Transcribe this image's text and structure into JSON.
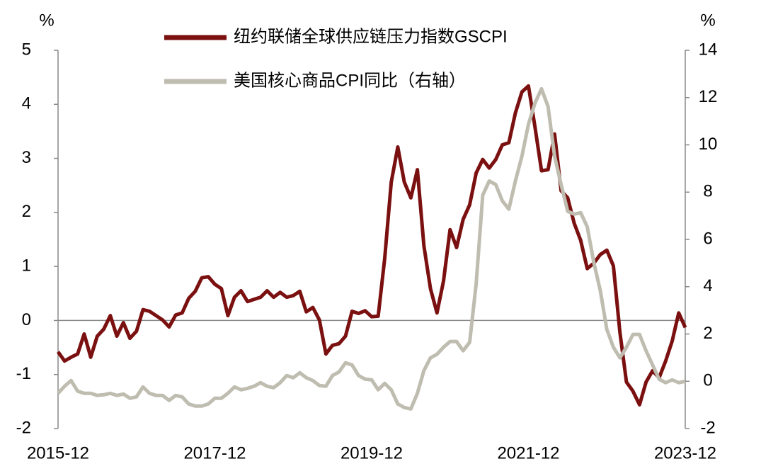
{
  "chart_data": {
    "type": "line",
    "y_label": "%",
    "y2_label": "%",
    "categories": [
      "2015-12",
      null,
      null,
      null,
      null,
      null,
      null,
      null,
      null,
      null,
      null,
      null,
      null,
      null,
      null,
      null,
      null,
      null,
      null,
      null,
      null,
      null,
      null,
      null,
      "2017-12",
      null,
      null,
      null,
      null,
      null,
      null,
      null,
      null,
      null,
      null,
      null,
      null,
      null,
      null,
      null,
      null,
      null,
      null,
      null,
      null,
      null,
      null,
      null,
      "2019-12",
      null,
      null,
      null,
      null,
      null,
      null,
      null,
      null,
      null,
      null,
      null,
      null,
      null,
      null,
      null,
      null,
      null,
      null,
      null,
      null,
      null,
      null,
      null,
      "2021-12",
      null,
      null,
      null,
      null,
      null,
      null,
      null,
      null,
      null,
      null,
      null,
      null,
      null,
      null,
      null,
      null,
      null,
      null,
      null,
      null,
      null,
      null,
      null,
      "2023-12"
    ],
    "series": [
      {
        "name": "纽约联储全球供应链压力指数GSCPI",
        "color": "#7b1010",
        "axis": "y",
        "values": [
          -0.58,
          -0.75,
          -0.68,
          -0.62,
          -0.25,
          -0.68,
          -0.29,
          -0.16,
          0.09,
          -0.29,
          -0.04,
          -0.33,
          -0.2,
          0.2,
          0.17,
          0.09,
          0.01,
          -0.12,
          0.1,
          0.14,
          0.41,
          0.54,
          0.79,
          0.81,
          0.67,
          0.59,
          0.09,
          0.43,
          0.55,
          0.35,
          0.39,
          0.43,
          0.55,
          0.43,
          0.52,
          0.43,
          0.46,
          0.54,
          0.16,
          0.24,
          0.01,
          -0.62,
          -0.46,
          -0.43,
          -0.29,
          0.17,
          0.13,
          0.18,
          0.07,
          0.08,
          1.15,
          2.56,
          3.21,
          2.56,
          2.27,
          2.79,
          1.38,
          0.59,
          0.14,
          0.73,
          1.68,
          1.35,
          1.87,
          2.14,
          2.73,
          2.98,
          2.82,
          2.98,
          3.25,
          3.29,
          3.84,
          4.23,
          4.34,
          3.58,
          2.77,
          2.79,
          3.45,
          2.4,
          2.27,
          1.8,
          1.48,
          0.96,
          1.06,
          1.22,
          1.3,
          1.01,
          -0.22,
          -1.14,
          -1.31,
          -1.56,
          -1.14,
          -0.93,
          -1.06,
          -0.75,
          -0.38,
          0.14,
          -0.13
        ]
      },
      {
        "name": "美国核心商品CPI同比（右轴）",
        "color": "#bfbcb0",
        "axis": "y2",
        "values": [
          -0.51,
          -0.21,
          0.03,
          -0.42,
          -0.51,
          -0.51,
          -0.6,
          -0.57,
          -0.51,
          -0.6,
          -0.54,
          -0.72,
          -0.66,
          -0.24,
          -0.51,
          -0.6,
          -0.6,
          -0.81,
          -0.6,
          -0.66,
          -0.96,
          -1.05,
          -1.05,
          -0.96,
          -0.72,
          -0.72,
          -0.51,
          -0.24,
          -0.36,
          -0.3,
          -0.21,
          -0.06,
          -0.21,
          -0.27,
          -0.06,
          0.24,
          0.15,
          0.36,
          0.15,
          0.03,
          -0.18,
          -0.21,
          0.24,
          0.39,
          0.78,
          0.69,
          0.24,
          0.09,
          0.06,
          -0.36,
          -0.09,
          -0.36,
          -0.96,
          -1.11,
          -1.17,
          -0.51,
          0.45,
          0.99,
          1.14,
          1.44,
          1.68,
          1.68,
          1.29,
          1.65,
          4.13,
          7.87,
          8.47,
          8.32,
          7.63,
          7.28,
          8.47,
          9.52,
          10.87,
          11.77,
          12.37,
          11.62,
          9.52,
          8.32,
          7.19,
          7.07,
          7.13,
          6.53,
          5.03,
          3.83,
          2.19,
          1.44,
          0.99,
          1.44,
          1.98,
          1.98,
          1.29,
          0.69,
          0.09,
          -0.06,
          0.06,
          -0.06,
          0
        ]
      }
    ],
    "ylim": [
      -2,
      5
    ],
    "yticks": [
      -2,
      -1,
      0,
      1,
      2,
      3,
      4,
      5
    ],
    "y2lim": [
      -2,
      14
    ],
    "y2ticks": [
      -2,
      0,
      2,
      4,
      6,
      8,
      10,
      12,
      14
    ]
  }
}
